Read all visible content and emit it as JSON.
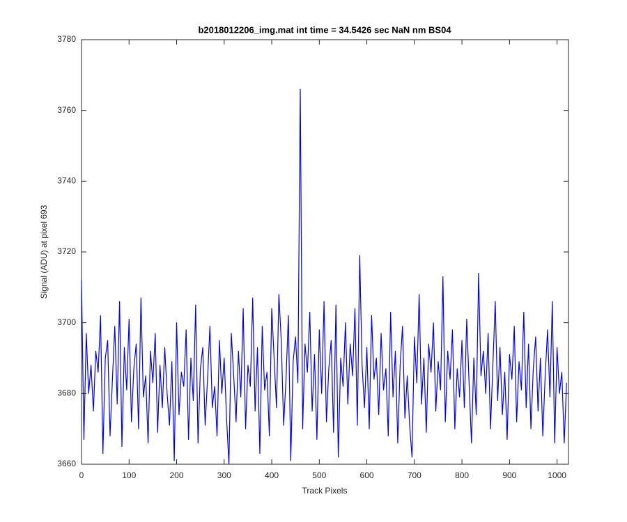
{
  "chart_data": {
    "type": "line",
    "title": "b2018012206_img.mat int time = 34.5426 sec  NaN nm BS04",
    "x_label": "Track Pixels",
    "y_label": "Signal (ADU) at pixel 693",
    "xlim": [
      0,
      1024
    ],
    "ylim": [
      3660,
      3780
    ],
    "xticks": [
      0,
      100,
      200,
      300,
      400,
      500,
      600,
      700,
      800,
      900,
      1000
    ],
    "yticks": [
      3660,
      3680,
      3700,
      3720,
      3740,
      3760,
      3780
    ],
    "grid": false,
    "series": [
      {
        "color": "#0000ff",
        "x": [
          0,
          5,
          10,
          15,
          20,
          25,
          30,
          35,
          40,
          45,
          50,
          55,
          60,
          65,
          70,
          75,
          80,
          85,
          90,
          95,
          100,
          105,
          110,
          115,
          120,
          125,
          130,
          135,
          140,
          145,
          150,
          155,
          160,
          165,
          170,
          175,
          180,
          185,
          190,
          195,
          200,
          205,
          210,
          215,
          220,
          225,
          230,
          235,
          240,
          245,
          250,
          255,
          260,
          265,
          270,
          275,
          280,
          285,
          290,
          295,
          300,
          305,
          310,
          315,
          320,
          325,
          330,
          335,
          340,
          345,
          350,
          355,
          360,
          365,
          370,
          375,
          380,
          385,
          390,
          395,
          400,
          405,
          410,
          415,
          420,
          425,
          430,
          435,
          440,
          445,
          450,
          455,
          460,
          465,
          470,
          475,
          480,
          485,
          490,
          495,
          500,
          505,
          510,
          515,
          520,
          525,
          530,
          535,
          540,
          545,
          550,
          555,
          560,
          565,
          570,
          575,
          580,
          585,
          590,
          595,
          600,
          605,
          610,
          615,
          620,
          625,
          630,
          635,
          640,
          645,
          650,
          655,
          660,
          665,
          670,
          675,
          680,
          685,
          690,
          695,
          700,
          705,
          710,
          715,
          720,
          725,
          730,
          735,
          740,
          745,
          750,
          755,
          760,
          765,
          770,
          775,
          780,
          785,
          790,
          795,
          800,
          805,
          810,
          815,
          820,
          825,
          830,
          835,
          840,
          845,
          850,
          855,
          860,
          865,
          870,
          875,
          880,
          885,
          890,
          895,
          900,
          905,
          910,
          915,
          920,
          925,
          930,
          935,
          940,
          945,
          950,
          955,
          960,
          965,
          970,
          975,
          980,
          985,
          990,
          995,
          1000,
          1005,
          1010,
          1015,
          1020
        ],
        "values": [
          3712,
          3667,
          3697,
          3680,
          3688,
          3675,
          3692,
          3686,
          3702,
          3663,
          3690,
          3695,
          3668,
          3684,
          3699,
          3677,
          3706,
          3665,
          3693,
          3681,
          3701,
          3672,
          3687,
          3694,
          3670,
          3707,
          3679,
          3685,
          3666,
          3692,
          3683,
          3697,
          3669,
          3688,
          3676,
          3693,
          3680,
          3671,
          3689,
          3661,
          3700,
          3674,
          3686,
          3682,
          3698,
          3667,
          3690,
          3678,
          3705,
          3666,
          3687,
          3693,
          3671,
          3684,
          3699,
          3676,
          3682,
          3668,
          3695,
          3680,
          3690,
          3673,
          3660,
          3697,
          3685,
          3672,
          3692,
          3679,
          3704,
          3670,
          3688,
          3682,
          3707,
          3675,
          3693,
          3663,
          3699,
          3681,
          3686,
          3668,
          3704,
          3690,
          3676,
          3708,
          3695,
          3671,
          3684,
          3702,
          3661,
          3689,
          3696,
          3683,
          3766,
          3670,
          3694,
          3686,
          3703,
          3675,
          3691,
          3667,
          3698,
          3680,
          3706,
          3672,
          3687,
          3695,
          3669,
          3705,
          3662,
          3690,
          3682,
          3700,
          3677,
          3694,
          3685,
          3704,
          3671,
          3719,
          3688,
          3676,
          3693,
          3670,
          3702,
          3684,
          3690,
          3674,
          3697,
          3681,
          3687,
          3668,
          3703,
          3679,
          3692,
          3666,
          3688,
          3699,
          3673,
          3685,
          3671,
          3662,
          3696,
          3683,
          3708,
          3677,
          3690,
          3669,
          3694,
          3686,
          3700,
          3675,
          3689,
          3681,
          3713,
          3672,
          3692,
          3684,
          3698,
          3670,
          3687,
          3679,
          3695,
          3676,
          3701,
          3683,
          3666,
          3690,
          3674,
          3714,
          3685,
          3692,
          3680,
          3697,
          3670,
          3688,
          3706,
          3678,
          3693,
          3674,
          3686,
          3667,
          3691,
          3684,
          3699,
          3672,
          3689,
          3681,
          3703,
          3676,
          3694,
          3670,
          3687,
          3696,
          3675,
          3690,
          3668,
          3685,
          3698,
          3679,
          3706,
          3666,
          3693,
          3680,
          3686,
          3666,
          3683
        ]
      }
    ]
  }
}
